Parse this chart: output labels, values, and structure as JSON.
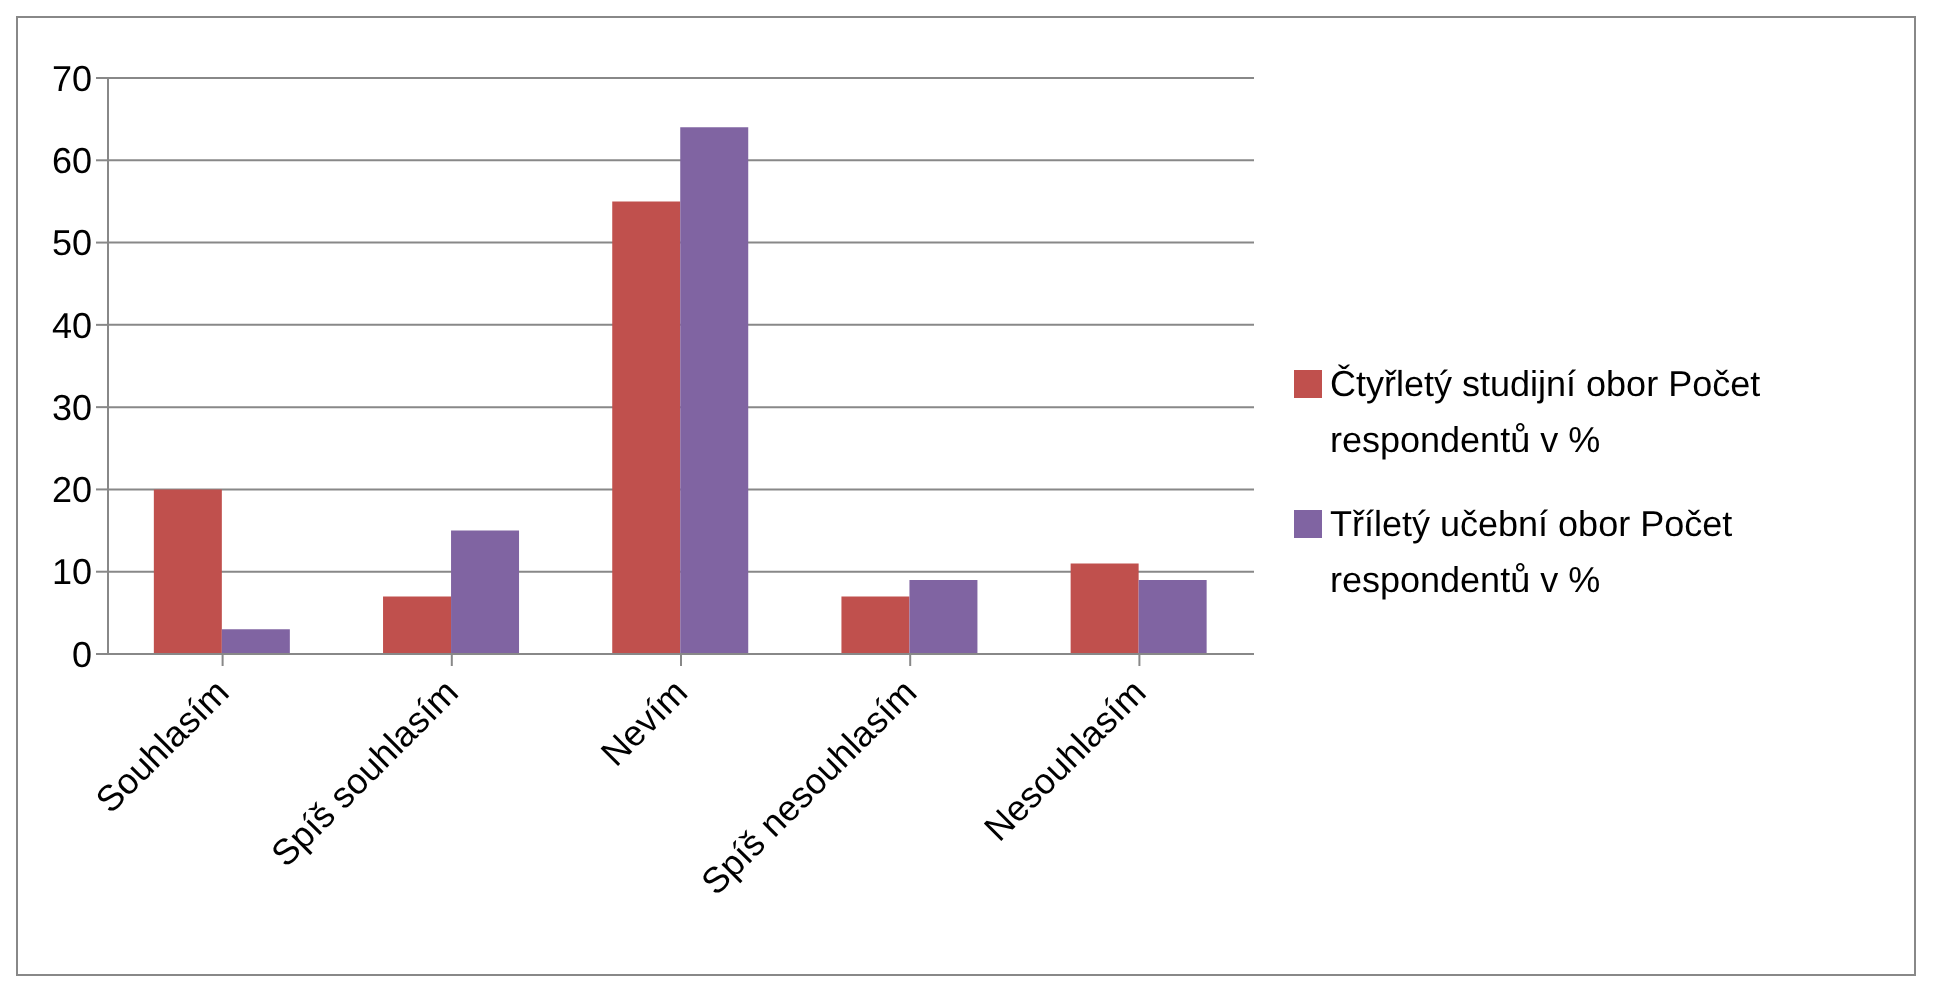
{
  "chart_data": {
    "type": "bar",
    "categories": [
      "Souhlasím",
      "Spíš souhlasím",
      "Nevím",
      "Spíš nesouhlasím",
      "Nesouhlasím"
    ],
    "series": [
      {
        "name": "Čtyřletý studijní obor Počet respondentů v %",
        "color": "#c0504d",
        "values": [
          20,
          7,
          55,
          7,
          11
        ]
      },
      {
        "name": "Tříletý učební obor Počet respondentů v %",
        "color": "#8064a2",
        "values": [
          3,
          15,
          64,
          9,
          9
        ]
      }
    ],
    "ylim": [
      0,
      70
    ],
    "yticks": [
      0,
      10,
      20,
      30,
      40,
      50,
      60,
      70
    ],
    "grid": "y",
    "legend": "right"
  }
}
